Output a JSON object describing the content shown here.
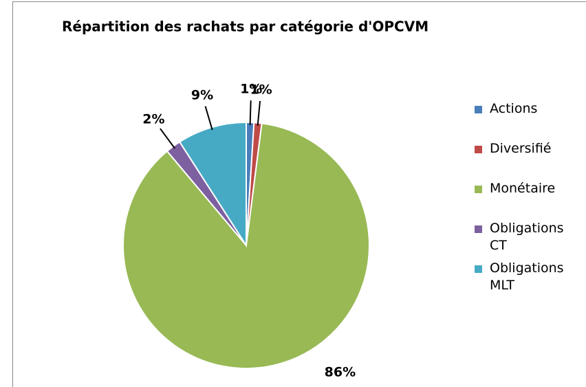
{
  "chart_data": {
    "type": "pie",
    "title": "Répartition des rachats par catégorie d'OPCVM",
    "categories": [
      "Actions",
      "Diversifié",
      "Monétaire",
      "Obligations CT",
      "Obligations MLT"
    ],
    "values": [
      1,
      1,
      86,
      2,
      9
    ],
    "value_labels": [
      "1%",
      "1%",
      "86%",
      "2%",
      "9%"
    ],
    "colors": [
      "#4a7ebb",
      "#be4b48",
      "#98b954",
      "#7d60a0",
      "#46aac5"
    ],
    "legend": "right"
  }
}
